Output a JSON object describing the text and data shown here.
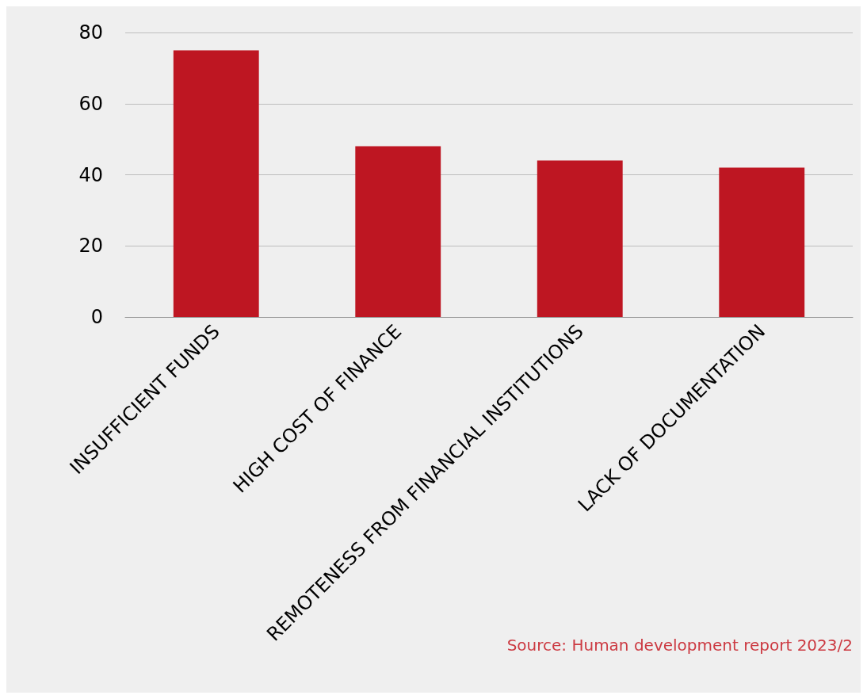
{
  "chart_data": {
    "type": "bar",
    "categories": [
      "INSUFFICIENT FUNDS",
      "HIGH COST OF FINANCE",
      "REMOTENESS FROM FINANCIAL INSTITUTIONS",
      "LACK OF DOCUMENTATION"
    ],
    "values": [
      75,
      48,
      44,
      42
    ],
    "color": "#be1622",
    "ylim": [
      0,
      80
    ],
    "yticks": [
      0,
      20,
      40,
      60,
      80
    ],
    "grid": "y",
    "annotations": [
      "Source: Human development report 2023/2"
    ]
  }
}
